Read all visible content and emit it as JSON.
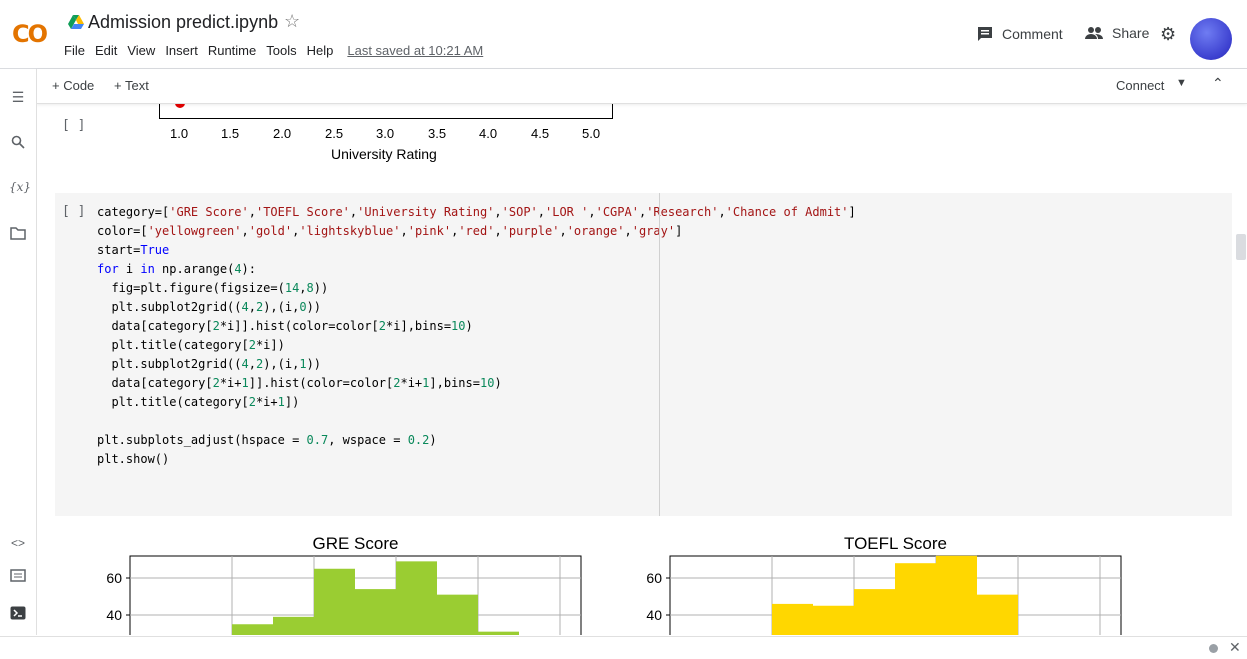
{
  "header": {
    "logo_text": "CO",
    "notebook_title": "Admission predict.ipynb",
    "menu": [
      "File",
      "Edit",
      "View",
      "Insert",
      "Runtime",
      "Tools",
      "Help"
    ],
    "last_saved": "Last saved at 10:21 AM",
    "comment_label": "Comment",
    "share_label": "Share"
  },
  "toolbar": {
    "add_code_label": "+ Code",
    "add_text_label": "+ Text",
    "connect_label": "Connect"
  },
  "prev_output": {
    "run_bracket": "[ ]",
    "x_ticks": [
      "1.0",
      "1.5",
      "2.0",
      "2.5",
      "3.0",
      "3.5",
      "4.0",
      "4.5",
      "5.0"
    ],
    "x_label": "University Rating"
  },
  "cell": {
    "run_bracket": "[ ]",
    "code_lines": [
      "category=['GRE Score','TOEFL Score','University Rating','SOP','LOR ','CGPA','Research','Chance of Admit']",
      "color=['yellowgreen','gold','lightskyblue','pink','red','purple','orange','gray']",
      "start=True",
      "for i in np.arange(4):",
      "  fig=plt.figure(figsize=(14,8))",
      "  plt.subplot2grid((4,2),(i,0))",
      "  data[category[2*i]].hist(color=color[2*i],bins=10)",
      "  plt.title(category[2*i])",
      "  plt.subplot2grid((4,2),(i,1))",
      "  data[category[2*i+1]].hist(color=color[2*i+1],bins=10)",
      "  plt.title(category[2*i+1])",
      "",
      "plt.subplots_adjust(hspace = 0.7, wspace = 0.2)",
      "plt.show()"
    ]
  },
  "chart_data": [
    {
      "type": "bar",
      "title": "GRE Score",
      "color": "#9acd32",
      "y_ticks": [
        "60",
        "40"
      ],
      "values": [
        35,
        39,
        65,
        54,
        69,
        51,
        31
      ]
    },
    {
      "type": "bar",
      "title": "TOEFL Score",
      "color": "#ffd700",
      "y_ticks": [
        "60",
        "40"
      ],
      "values": [
        46,
        45,
        54,
        68,
        72,
        51
      ]
    }
  ],
  "colors": {
    "accent": "#f9ab00",
    "gre_bar": "#9acd32",
    "toefl_bar": "#ffd700"
  }
}
